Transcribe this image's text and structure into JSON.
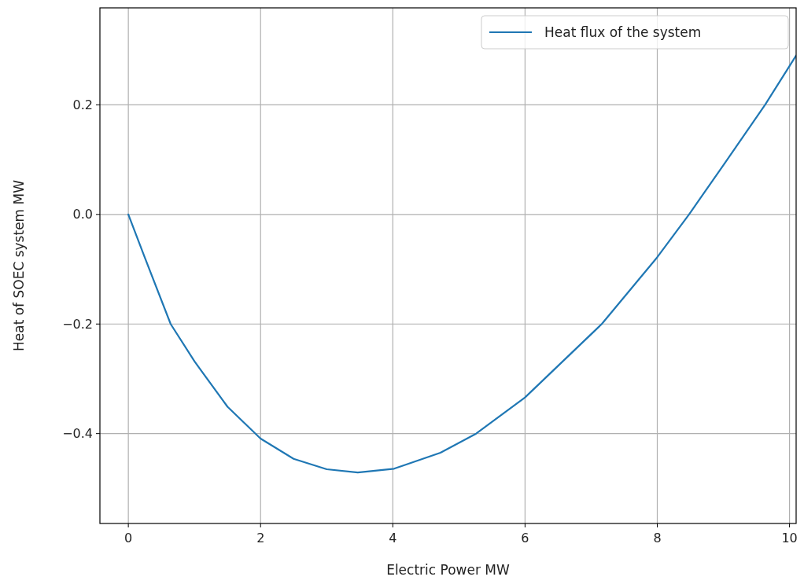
{
  "chart_data": {
    "type": "line",
    "xlabel": "Electric Power MW",
    "ylabel": "Heat of SOEC system MW",
    "xlim": [
      -0.43,
      10.1
    ],
    "ylim": [
      -0.564,
      0.377
    ],
    "xticks": [
      0,
      2,
      4,
      6,
      8,
      10
    ],
    "yticks": [
      {
        "value": -0.4,
        "label": "−0.4"
      },
      {
        "value": -0.2,
        "label": "−0.2"
      },
      {
        "value": 0,
        "label": "0.0"
      },
      {
        "value": 0.2,
        "label": "0.2"
      }
    ],
    "grid": true,
    "legend": "top right",
    "series": [
      {
        "name": "Heat flux of the system",
        "color": "#1f77b4",
        "x": [
          0,
          0.25,
          0.64,
          1,
          1.5,
          2,
          2.5,
          3,
          3.47,
          4.02,
          4.72,
          5.26,
          6,
          7.16,
          8,
          8.48,
          9,
          9.63,
          10.1
        ],
        "values": [
          0,
          -0.079,
          -0.2,
          -0.268,
          -0.351,
          -0.409,
          -0.446,
          -0.465,
          -0.471,
          -0.464,
          -0.435,
          -0.4,
          -0.334,
          -0.2,
          -0.078,
          0,
          0.09,
          0.2,
          0.29
        ]
      }
    ]
  }
}
